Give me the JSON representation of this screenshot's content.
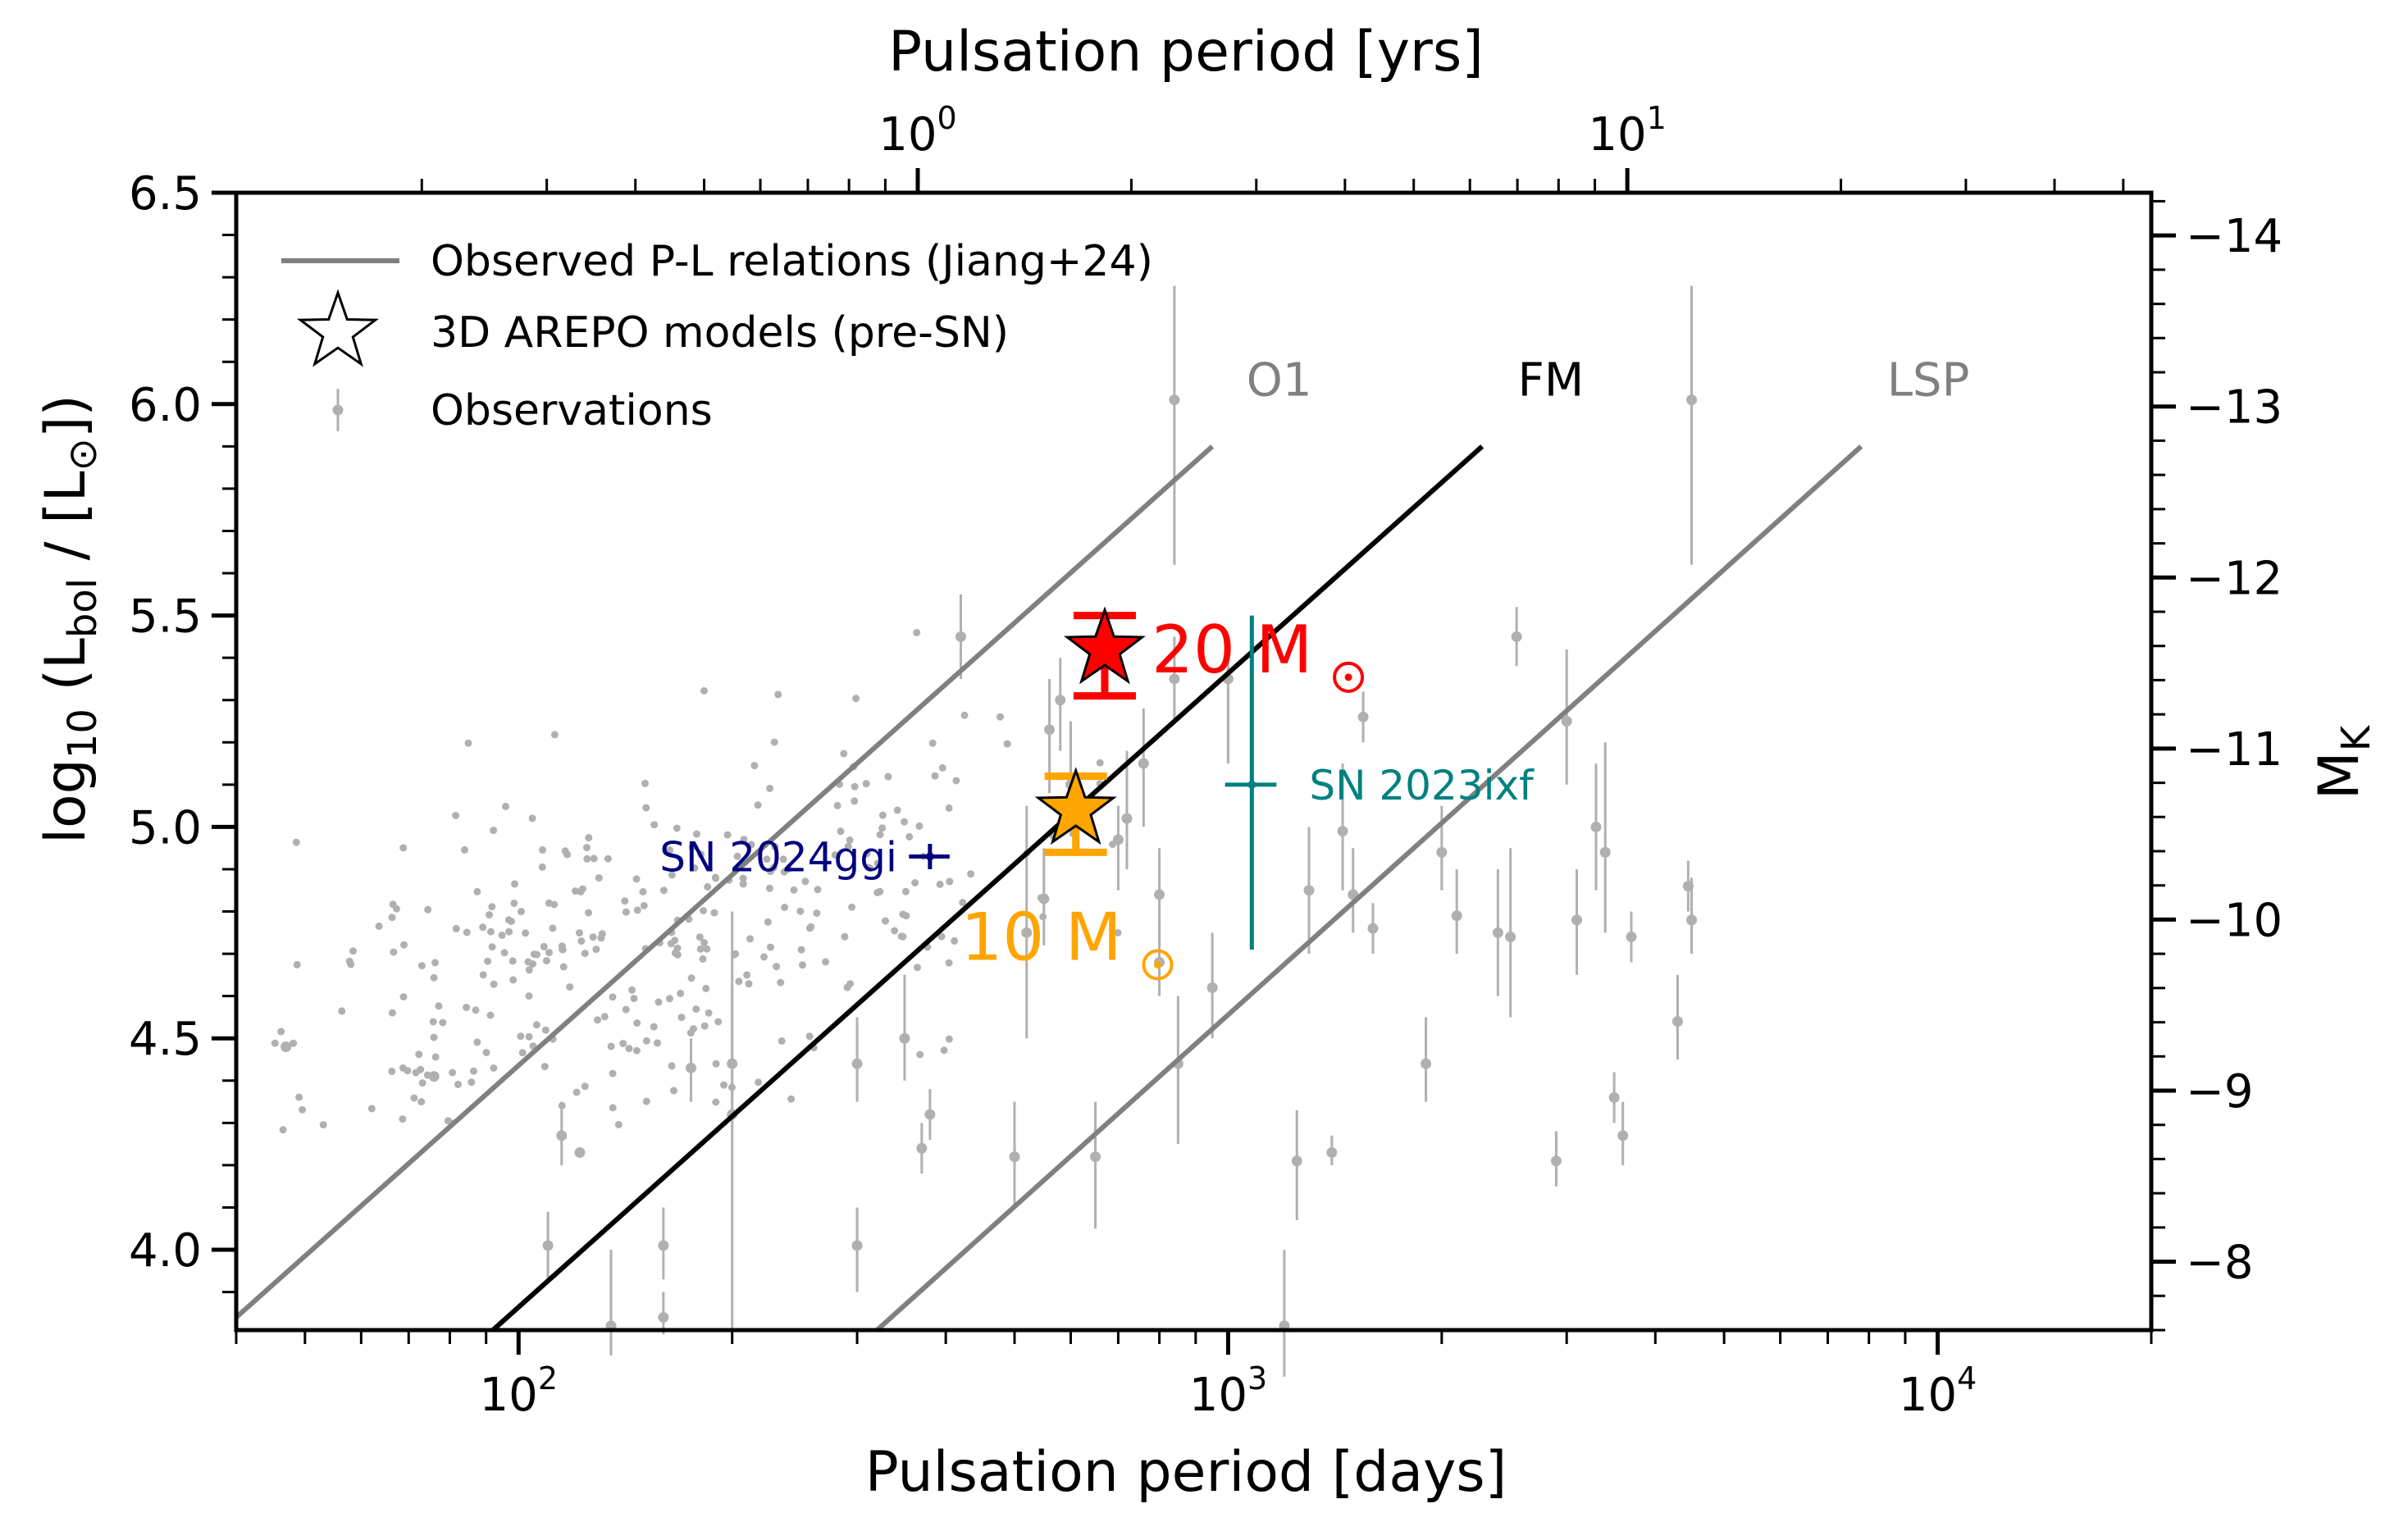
{
  "chart_data": {
    "type": "scatter",
    "xlabel": "Pulsation period [days]",
    "ylabel_main": "log",
    "ylabel_sub": "10",
    "ylabel_open": " (L",
    "ylabel_bol": "bol",
    "ylabel_mid": " / [L",
    "ylabel_sun": "⊙",
    "ylabel_close": "])",
    "top_xlabel": "Pulsation period [yrs]",
    "right_ylabel_main": "M",
    "right_ylabel_sub": "K",
    "x_range_days": [
      40,
      20000
    ],
    "y_range": [
      3.81,
      6.5
    ],
    "x_ticks": [
      {
        "value": 100,
        "base": "10",
        "exp": "2"
      },
      {
        "value": 1000,
        "base": "10",
        "exp": "3"
      },
      {
        "value": 10000,
        "base": "10",
        "exp": "4"
      }
    ],
    "top_ticks": [
      {
        "value_years": 1,
        "base": "10",
        "exp": "0"
      },
      {
        "value_years": 10,
        "base": "10",
        "exp": "1"
      }
    ],
    "y_ticks": [
      {
        "value": 4.0,
        "label": "4.0"
      },
      {
        "value": 4.5,
        "label": "4.5"
      },
      {
        "value": 5.0,
        "label": "5.0"
      },
      {
        "value": 5.5,
        "label": "5.5"
      },
      {
        "value": 6.0,
        "label": "6.0"
      },
      {
        "value": 6.5,
        "label": "6.5"
      }
    ],
    "right_axis": {
      "mk_at_bottom": -7.6,
      "mk_at_top": -14.25,
      "ticks": [
        {
          "value": -8,
          "label": "−8"
        },
        {
          "value": -9,
          "label": "−9"
        },
        {
          "value": -10,
          "label": "−10"
        },
        {
          "value": -11,
          "label": "−11"
        },
        {
          "value": -12,
          "label": "−12"
        },
        {
          "value": -13,
          "label": "−13"
        },
        {
          "value": -14,
          "label": "−14"
        }
      ]
    },
    "pl_relations": [
      {
        "name": "O1",
        "color": "#808080",
        "x": [
          40,
          950
        ],
        "y": [
          3.84,
          5.9
        ],
        "label_at": [
          1180,
          6.02
        ]
      },
      {
        "name": "FM",
        "color": "#000000",
        "x": [
          92,
          2280
        ],
        "y": [
          3.81,
          5.9
        ],
        "label_at": [
          2850,
          6.02
        ]
      },
      {
        "name": "LSP",
        "color": "#808080",
        "x": [
          320,
          7800
        ],
        "y": [
          3.81,
          5.9
        ],
        "label_at": [
          9700,
          6.02
        ]
      }
    ],
    "legend": [
      {
        "kind": "line",
        "label": "Observed P-L relations (Jiang+24)"
      },
      {
        "kind": "star",
        "label": "3D AREPO models (pre-SN)"
      },
      {
        "kind": "point",
        "label": "Observations"
      }
    ],
    "models": [
      {
        "name": "20",
        "label": "20 M",
        "sun": "⊙",
        "color": "#ff0000",
        "x": 670,
        "y": 5.42,
        "yerr": [
          5.31,
          5.5
        ],
        "label_at": [
          780,
          5.42
        ]
      },
      {
        "name": "10",
        "label": "10 M",
        "sun": "⊙",
        "color": "#ffa500",
        "x": 610,
        "y": 5.04,
        "yerr": [
          4.94,
          5.12
        ],
        "label_at": [
          420,
          4.74
        ]
      }
    ],
    "supernovae": [
      {
        "name": "SN 2023ixf",
        "color": "#008080",
        "x": 1080,
        "y": 5.1,
        "yerr": [
          4.71,
          5.5
        ],
        "xerr": [
          990,
          1170
        ],
        "label_side": "right"
      },
      {
        "name": "SN 2024ggi",
        "color": "#000080",
        "x": 380,
        "y": 4.93,
        "yerr": [
          4.9,
          4.96
        ],
        "xerr": [
          355,
          405
        ],
        "label_side": "left"
      }
    ],
    "observations_with_errors": [
      [
        47,
        4.48,
        0,
        0
      ],
      [
        76,
        4.41,
        0,
        0
      ],
      [
        110,
        4.01,
        3.93,
        4.09
      ],
      [
        115,
        4.27,
        4.2,
        4.35
      ],
      [
        122,
        4.23,
        0,
        0
      ],
      [
        135,
        3.82,
        3.75,
        4.0
      ],
      [
        160,
        3.84,
        3.8,
        3.9
      ],
      [
        160,
        4.01,
        3.93,
        4.1
      ],
      [
        175,
        4.43,
        4.35,
        4.5
      ],
      [
        200,
        4.32,
        3.81,
        4.8
      ],
      [
        200,
        4.44,
        4.33,
        4.62
      ],
      [
        300,
        4.01,
        3.9,
        4.1
      ],
      [
        300,
        4.44,
        4.35,
        4.55
      ],
      [
        350,
        4.5,
        4.4,
        4.65
      ],
      [
        370,
        4.24,
        4.18,
        4.3
      ],
      [
        380,
        4.32,
        4.26,
        4.38
      ],
      [
        420,
        5.45,
        5.35,
        5.55
      ],
      [
        500,
        4.22,
        4.1,
        4.35
      ],
      [
        520,
        4.75,
        4.5,
        5.05
      ],
      [
        550,
        4.83,
        4.72,
        4.95
      ],
      [
        560,
        5.23,
        5.08,
        5.35
      ],
      [
        580,
        5.3,
        5.18,
        5.4
      ],
      [
        600,
        5.1,
        5.0,
        5.25
      ],
      [
        650,
        4.22,
        4.05,
        4.35
      ],
      [
        700,
        4.97,
        4.85,
        5.05
      ],
      [
        720,
        5.02,
        4.9,
        5.18
      ],
      [
        760,
        5.15,
        5.0,
        5.28
      ],
      [
        800,
        4.68,
        4.6,
        4.78
      ],
      [
        800,
        4.84,
        4.72,
        4.95
      ],
      [
        840,
        6.01,
        5.62,
        6.28
      ],
      [
        840,
        5.35,
        5.25,
        5.45
      ],
      [
        850,
        4.44,
        4.25,
        4.6
      ],
      [
        1000,
        5.35,
        5.15,
        5.45
      ],
      [
        1200,
        3.82,
        3.7,
        4.0
      ],
      [
        1250,
        4.21,
        4.07,
        4.33
      ],
      [
        1300,
        4.85,
        4.7,
        5.0
      ],
      [
        1400,
        4.23,
        4.2,
        4.27
      ],
      [
        1450,
        4.99,
        4.85,
        5.15
      ],
      [
        1500,
        4.84,
        4.75,
        4.95
      ],
      [
        1550,
        5.26,
        5.2,
        5.32
      ],
      [
        1600,
        4.76,
        4.7,
        4.82
      ],
      [
        2000,
        4.94,
        4.85,
        5.05
      ],
      [
        2100,
        4.79,
        4.7,
        4.9
      ],
      [
        2500,
        4.74,
        4.55,
        4.95
      ],
      [
        2550,
        5.45,
        5.38,
        5.52
      ],
      [
        2900,
        4.21,
        4.15,
        4.28
      ],
      [
        3000,
        5.25,
        5.1,
        5.42
      ],
      [
        3100,
        4.78,
        4.65,
        4.9
      ],
      [
        3300,
        5.0,
        4.85,
        5.15
      ],
      [
        3400,
        4.94,
        4.75,
        5.2
      ],
      [
        3500,
        4.36,
        4.3,
        4.42
      ],
      [
        3600,
        4.27,
        4.2,
        4.35
      ],
      [
        3700,
        4.74,
        4.68,
        4.8
      ],
      [
        4300,
        4.54,
        4.45,
        4.65
      ],
      [
        4450,
        4.86,
        4.8,
        4.92
      ],
      [
        4500,
        4.78,
        4.7,
        4.88
      ],
      [
        4500,
        6.01,
        5.62,
        6.28
      ],
      [
        2400,
        4.75,
        4.6,
        4.9
      ],
      [
        1900,
        4.44,
        4.35,
        4.55
      ],
      [
        950,
        4.62,
        4.5,
        4.75
      ]
    ]
  }
}
